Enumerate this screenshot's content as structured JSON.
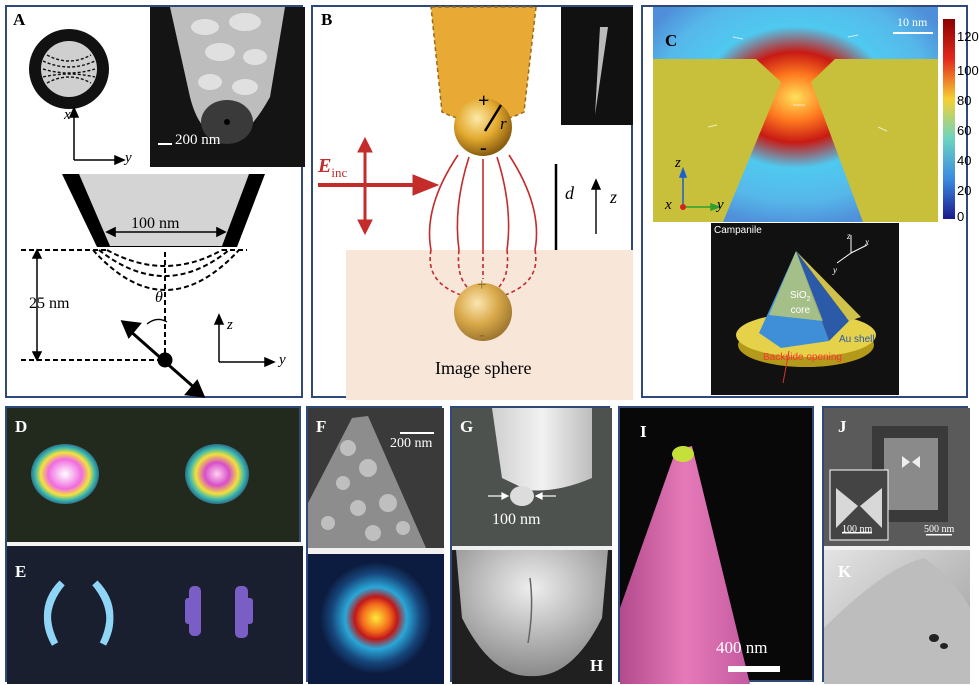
{
  "panels": {
    "A": {
      "label": "A",
      "scale": "200 nm",
      "aperture": "100 nm",
      "depth": "25 nm",
      "theta": "θ",
      "ax_x": "x",
      "ax_y": "y",
      "ax_z": "z",
      "ax_y2": "y"
    },
    "B": {
      "label": "B",
      "r": "r",
      "e_main": "E",
      "e_sub": "inc",
      "d": "d",
      "z": "z",
      "plus": "+",
      "minus": "-",
      "caption": "Image sphere"
    },
    "C": {
      "label": "C",
      "scale": "10 nm",
      "colorbar": [
        "120",
        "100",
        "80",
        "60",
        "40",
        "20",
        "0"
      ],
      "ax_x": "x",
      "ax_y": "y",
      "ax_z": "z",
      "campanile": "Campanile",
      "core_sio": "SiO",
      "core_sub": "2",
      "core": "core",
      "shell": "Au shell",
      "opening": "Backside opening",
      "ax3_z": "z",
      "ax3_x": "x",
      "ax3_y": "y"
    },
    "D": {
      "label": "D"
    },
    "E": {
      "label": "E"
    },
    "F": {
      "label": "F",
      "scale": "200 nm"
    },
    "G": {
      "label": "G",
      "scale": "100 nm"
    },
    "H": {
      "label": "H"
    },
    "I": {
      "label": "I",
      "scale": "400 nm"
    },
    "J": {
      "label": "J",
      "inset_scale": "100 nm",
      "scale": "500 nm"
    },
    "K": {
      "label": "K"
    }
  },
  "colors": {
    "frame": "#2f4a7a",
    "gold": "#e2a92e",
    "field_red": "#cc2020",
    "substrate": "#f8e6d8",
    "sem_dark": "#1b1b1b"
  }
}
